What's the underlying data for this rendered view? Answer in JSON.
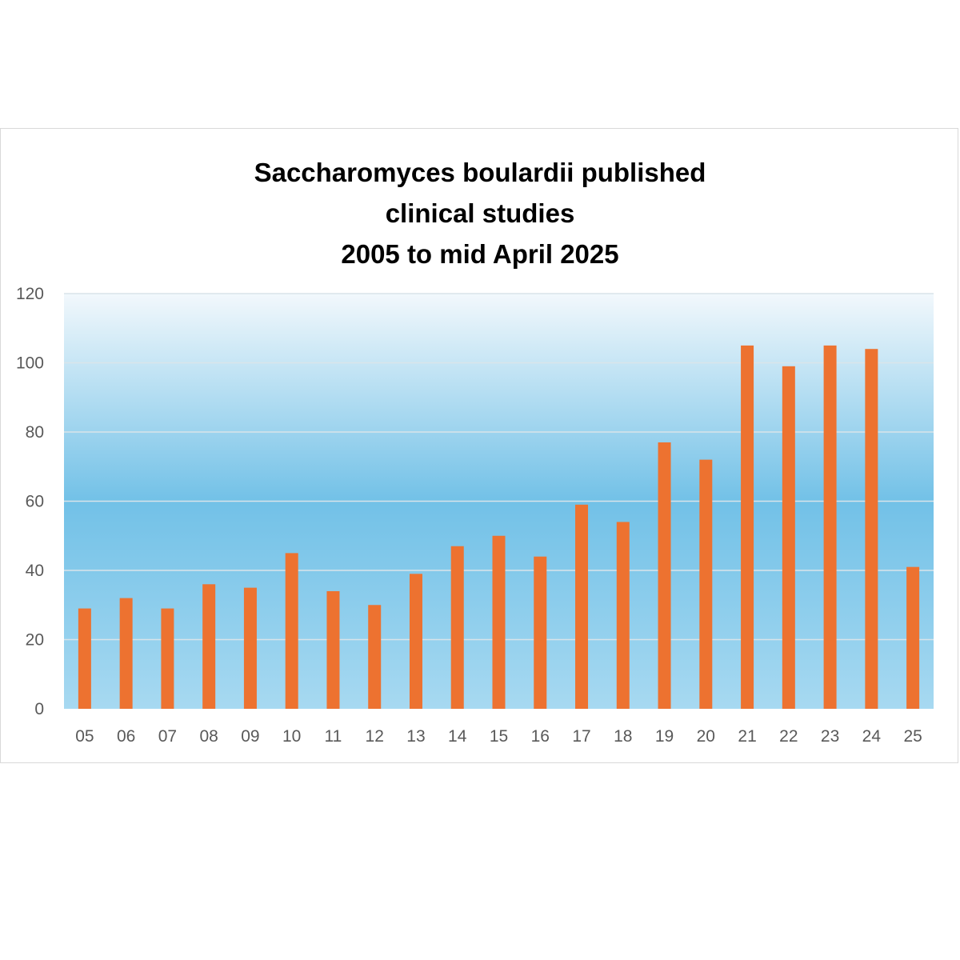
{
  "chart_data": {
    "type": "bar",
    "title_lines": [
      "Saccharomyces boulardii published",
      "clinical studies",
      "2005 to mid April 2025"
    ],
    "categories": [
      "05",
      "06",
      "07",
      "08",
      "09",
      "10",
      "11",
      "12",
      "13",
      "14",
      "15",
      "16",
      "17",
      "18",
      "19",
      "20",
      "21",
      "22",
      "23",
      "24",
      "25"
    ],
    "values": [
      29,
      32,
      29,
      36,
      35,
      45,
      34,
      30,
      39,
      47,
      50,
      44,
      59,
      54,
      77,
      72,
      105,
      99,
      105,
      104,
      41
    ],
    "ylim": [
      0,
      120
    ],
    "yticks": [
      0,
      20,
      40,
      60,
      80,
      100,
      120
    ],
    "grid": true,
    "legend": "none",
    "xlabel": "",
    "ylabel": "",
    "colors": {
      "bar": "#ED7230",
      "background_top": "#F2F8FC",
      "background_middle": "#72C1E7",
      "background_bottom": "#A7D9F1",
      "gridline": "#D9E4EA",
      "tick_text": "#595959"
    }
  }
}
